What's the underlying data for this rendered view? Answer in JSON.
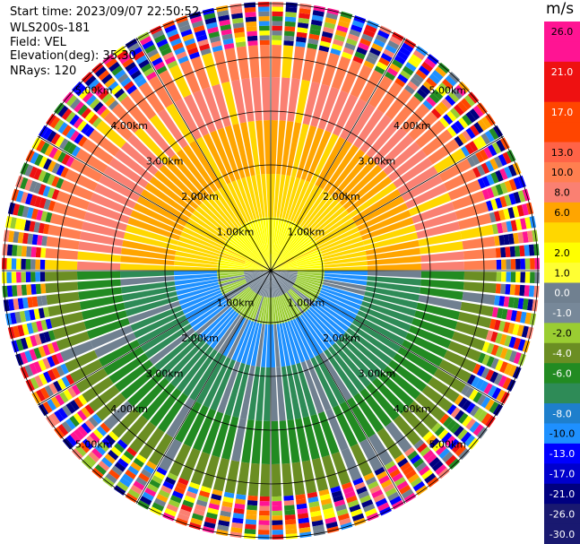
{
  "header": {
    "start_time": "Start time: 2023/09/07 22:50:52",
    "instrument": "WLS200s-181",
    "field": "Field: VEL",
    "elevation": "Elevation(deg): 35.30",
    "nrays": "NRays: 120"
  },
  "chart_data": {
    "type": "heatmap",
    "subtype": "polar-ppi",
    "grid": true,
    "range_rings": [
      "1.00km",
      "2.00km",
      "3.00km",
      "4.00km",
      "5.00km"
    ],
    "range_ring_km": [
      1,
      2,
      3,
      4,
      5
    ],
    "azimuth_lines_deg": [
      0,
      30,
      60,
      90,
      120,
      150,
      180,
      210,
      240,
      270,
      300,
      330
    ],
    "max_range_km": 5.0,
    "nrays": 120,
    "colorbar": {
      "unit": "m/s",
      "position": "right",
      "ticks": [
        "26.0",
        "21.0",
        "17.0",
        "13.0",
        "10.0",
        "8.0",
        "6.0",
        "2.0",
        "1.0",
        "0.0",
        "-1.0",
        "-2.0",
        "-4.0",
        "-6.0",
        "-8.0",
        "-10.0",
        "-13.0",
        "-17.0",
        "-21.0",
        "-26.0",
        "-30.0"
      ],
      "bins": [
        {
          "color": "#ff1493",
          "label": "26.0"
        },
        {
          "color": "#ff1493",
          "label": ""
        },
        {
          "color": "#ee1111",
          "label": "21.0"
        },
        {
          "color": "#ee1111",
          "label": ""
        },
        {
          "color": "#ff4500",
          "label": "17.0"
        },
        {
          "color": "#ff4500",
          "label": ""
        },
        {
          "color": "#ff6347",
          "label": "13.0"
        },
        {
          "color": "#ff7f50",
          "label": "10.0"
        },
        {
          "color": "#fa8072",
          "label": "8.0"
        },
        {
          "color": "#ffa500",
          "label": "6.0"
        },
        {
          "color": "#ffd700",
          "label": ""
        },
        {
          "color": "#ffff00",
          "label": "2.0"
        },
        {
          "color": "#ffff33",
          "label": "1.0"
        },
        {
          "color": "#708090",
          "label": "0.0"
        },
        {
          "color": "#778899",
          "label": "-1.0"
        },
        {
          "color": "#9acd32",
          "label": "-2.0"
        },
        {
          "color": "#6b8e23",
          "label": "-4.0"
        },
        {
          "color": "#228b22",
          "label": "-6.0"
        },
        {
          "color": "#2e8b57",
          "label": ""
        },
        {
          "color": "#1e7fcc",
          "label": "-8.0"
        },
        {
          "color": "#1e90ff",
          "label": "-10.0"
        },
        {
          "color": "#0000ff",
          "label": "-13.0"
        },
        {
          "color": "#0000cd",
          "label": "-17.0"
        },
        {
          "color": "#000080",
          "label": "-21.0"
        },
        {
          "color": "#191970",
          "label": "-26.0"
        },
        {
          "color": "#191970",
          "label": "-30.0"
        }
      ]
    },
    "range_bands_km": [
      {
        "from": 0.0,
        "to": 0.5,
        "upper": "#ffff00",
        "lower": "#708090"
      },
      {
        "from": 0.5,
        "to": 1.0,
        "upper": "#ffff00",
        "lower": "#9acd32"
      },
      {
        "from": 1.0,
        "to": 1.8,
        "upper": "#ffd700",
        "lower": "#1e90ff"
      },
      {
        "from": 1.8,
        "to": 2.8,
        "upper": "#ffa500",
        "lower": "#2e8b57"
      },
      {
        "from": 2.8,
        "to": 3.6,
        "upper": "#fa8072",
        "lower": "#228b22"
      },
      {
        "from": 3.6,
        "to": 4.2,
        "upper": "#ff7f50",
        "lower": "#6b8e23"
      },
      {
        "from": 4.2,
        "to": 5.0,
        "upper": "noise",
        "lower": "noise"
      }
    ],
    "noise_palette": [
      "#ff1493",
      "#0000ff",
      "#ffff00",
      "#ff4500",
      "#228b22",
      "#000080",
      "#fa8072",
      "#ffa500",
      "#708090",
      "#ee1111",
      "#9acd32",
      "#1e90ff"
    ]
  }
}
